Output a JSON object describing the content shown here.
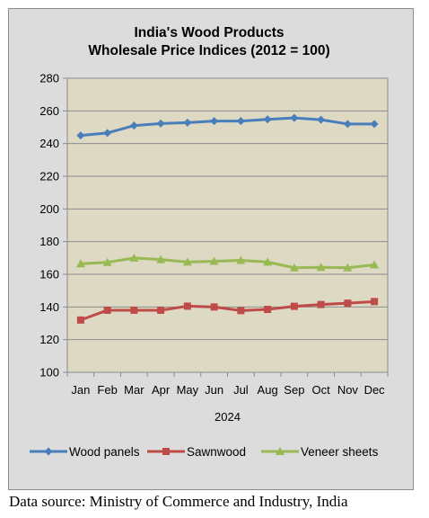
{
  "chart_data": {
    "type": "line",
    "title": "India's Wood Products",
    "subtitle": "Wholesale Price Indices (2012 = 100)",
    "xlabel": "2024",
    "ylabel": "",
    "categories": [
      "Jan",
      "Feb",
      "Mar",
      "Apr",
      "May",
      "Jun",
      "Jul",
      "Aug",
      "Sep",
      "Oct",
      "Nov",
      "Dec"
    ],
    "ylim": [
      100,
      280
    ],
    "yticks": [
      100,
      120,
      140,
      160,
      180,
      200,
      220,
      240,
      260,
      280
    ],
    "grid": true,
    "legend_position": "bottom",
    "series": [
      {
        "name": "Wood panels",
        "color": "#4a7ebb",
        "marker": "diamond",
        "values": [
          245.0,
          246.5,
          251.0,
          252.3,
          252.8,
          253.8,
          253.8,
          254.8,
          255.7,
          254.6,
          252.0,
          252.0
        ]
      },
      {
        "name": "Sawnwood",
        "color": "#be4b48",
        "marker": "square",
        "values": [
          132.0,
          138.0,
          138.0,
          138.0,
          140.5,
          140.0,
          137.8,
          138.5,
          140.4,
          141.5,
          142.3,
          143.3
        ]
      },
      {
        "name": "Veneer sheets",
        "color": "#98b954",
        "marker": "triangle",
        "values": [
          166.5,
          167.3,
          170.0,
          169.0,
          167.5,
          168.0,
          168.5,
          167.5,
          164.0,
          164.3,
          164.0,
          165.8
        ]
      }
    ]
  },
  "footer": {
    "source": "Data source: Ministry of Commerce and Industry, India"
  }
}
